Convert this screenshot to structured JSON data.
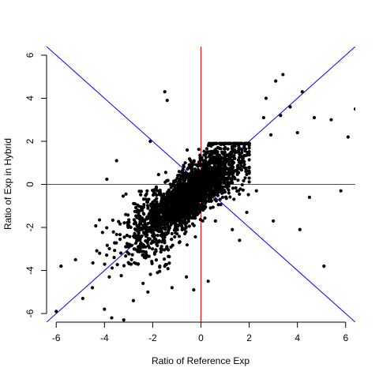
{
  "chart_data": {
    "type": "scatter",
    "title": "",
    "xlabel": "Ratio of Reference Exp",
    "ylabel": "Ratio of Exp in Hybrid",
    "xlim": [
      -6.4,
      6.4
    ],
    "ylim": [
      -6.4,
      6.4
    ],
    "x_ticks": [
      -6,
      -4,
      -2,
      0,
      2,
      4,
      6
    ],
    "y_ticks": [
      -6,
      -4,
      -2,
      0,
      2,
      4,
      6
    ],
    "x_tick_labels": [
      "-6",
      "-4",
      "-2",
      "0",
      "2",
      "4",
      "6"
    ],
    "y_tick_labels": [
      "-6",
      "-4",
      "-2",
      "0",
      "2",
      "4",
      "6"
    ],
    "grid": false,
    "legend": "none",
    "point_color": "#000000",
    "reference_lines": [
      {
        "kind": "vertical",
        "value": 0,
        "color": "#ff0000"
      },
      {
        "kind": "horizontal",
        "value": 0,
        "color": "#ff0000"
      },
      {
        "kind": "diagonal",
        "slope": 1,
        "intercept": 0,
        "color": "#0000ff"
      },
      {
        "kind": "diagonal",
        "slope": -1,
        "intercept": 0,
        "color": "#0000ff"
      }
    ],
    "points_core": {
      "x": [
        -1.8,
        -1.6,
        -1.5,
        -1.4,
        -1.3,
        -1.2,
        -1.1,
        -1.0,
        -0.9,
        -0.8,
        -0.7,
        -0.6,
        -0.5,
        -0.4,
        -0.3,
        -0.2,
        -0.1,
        0.0,
        0.1,
        0.2,
        0.3,
        0.4,
        0.5,
        0.6,
        0.7,
        0.8,
        0.9,
        1.0,
        1.1,
        1.2,
        1.3,
        1.4,
        1.5,
        1.6,
        1.7,
        1.8,
        -2.0,
        -2.2,
        -2.4,
        -1.9,
        -1.7,
        -1.3,
        -0.9,
        -0.5,
        -0.2,
        0.2,
        0.6,
        1.0,
        1.4,
        1.8
      ],
      "y": [
        -2.0,
        -1.7,
        -1.4,
        -1.6,
        -1.2,
        -1.3,
        -1.0,
        -1.1,
        -0.8,
        -0.9,
        -0.6,
        -0.7,
        -0.4,
        -0.5,
        -0.2,
        -0.3,
        0.0,
        -0.1,
        0.2,
        0.1,
        0.4,
        0.3,
        0.6,
        0.5,
        0.8,
        0.7,
        1.0,
        0.9,
        1.1,
        1.2,
        1.3,
        1.2,
        1.5,
        1.4,
        1.6,
        1.7,
        -2.4,
        -2.6,
        -2.8,
        -2.1,
        -1.9,
        -1.5,
        -1.2,
        -0.7,
        -0.4,
        0.3,
        0.7,
        1.2,
        1.6,
        1.8
      ]
    },
    "points_outliers": {
      "x": [
        -6.0,
        -5.8,
        -5.2,
        -4.9,
        -4.5,
        -4.2,
        -4.0,
        -3.8,
        -3.7,
        -3.2,
        -3.0,
        -2.8,
        -2.6,
        -2.4,
        -2.2,
        -1.8,
        -1.5,
        -1.2,
        -0.9,
        -0.6,
        -0.3,
        0.3,
        0.6,
        0.9,
        1.3,
        1.6,
        1.9,
        2.3,
        2.6,
        2.9,
        3.0,
        3.1,
        3.4,
        3.7,
        4.0,
        4.2,
        4.5,
        4.7,
        5.1,
        5.4,
        5.8,
        6.1,
        6.4,
        -1.4,
        -1.5,
        -2.1,
        -3.5,
        2.7,
        3.3,
        4.1
      ],
      "y": [
        -5.9,
        -3.8,
        -3.5,
        -5.3,
        -4.8,
        -3.2,
        -5.8,
        -4.3,
        -6.2,
        -6.3,
        -2.9,
        -5.4,
        -3.7,
        -4.6,
        -5.0,
        -4.1,
        -3.8,
        -4.8,
        -2.7,
        -4.3,
        -4.9,
        -4.5,
        -1.7,
        -0.6,
        -2.1,
        -2.6,
        -1.3,
        -0.3,
        3.1,
        2.3,
        -1.7,
        4.8,
        5.1,
        3.6,
        2.4,
        4.3,
        -0.6,
        3.1,
        -3.8,
        3.0,
        -0.3,
        2.2,
        3.5,
        3.9,
        4.3,
        2.0,
        1.1,
        4.0,
        3.2,
        -2.1
      ]
    }
  }
}
